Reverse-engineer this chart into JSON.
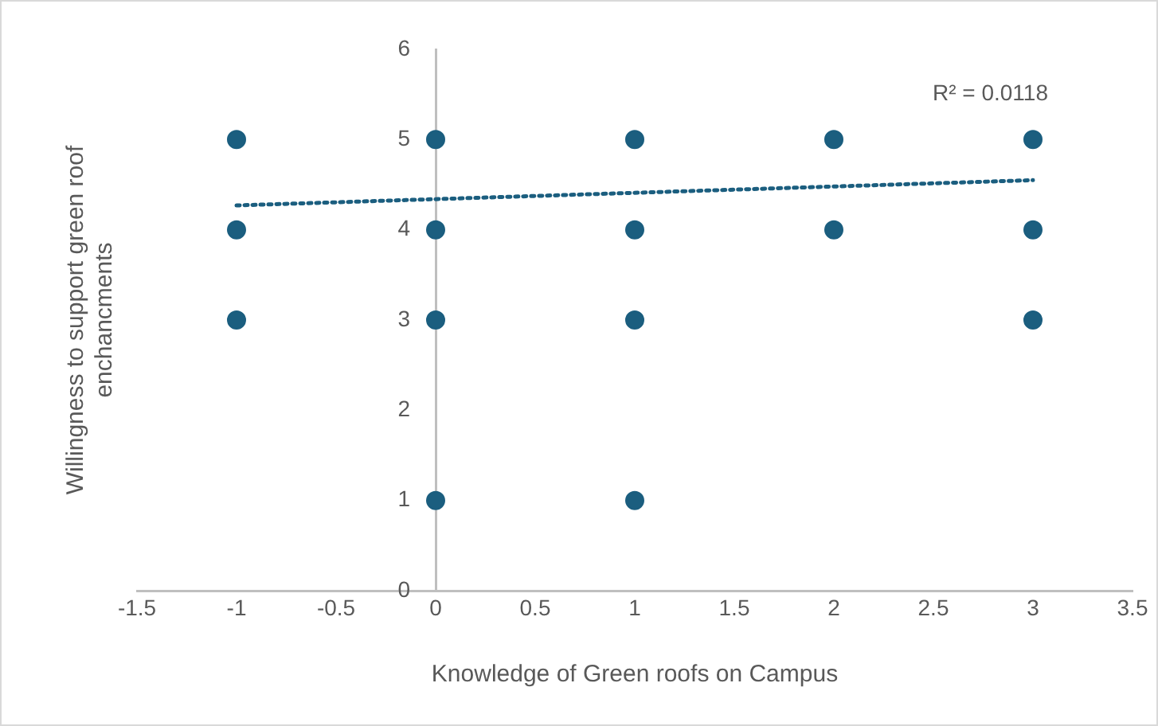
{
  "chart_data": {
    "type": "scatter",
    "xlabel": "Knowledge of Green roofs on Campus",
    "ylabel": "Willingness to support green roof enchancments",
    "series": [
      {
        "color": "#1b5e7f",
        "x": [
          -1,
          -1,
          -1,
          0,
          0,
          0,
          0,
          1,
          1,
          1,
          1,
          2,
          2,
          3,
          3,
          3
        ],
        "values": [
          5,
          4,
          3,
          5,
          4,
          3,
          1,
          5,
          4,
          3,
          1,
          5,
          4,
          5,
          4,
          3
        ],
        "marker": "circle"
      },
      {
        "type": "line",
        "color": "#1b5e7f",
        "x": [
          -1,
          3
        ],
        "values": [
          4.27,
          4.55
        ],
        "marker": "none",
        "line_style": "dotted"
      }
    ],
    "annotations": [
      "R² = 0.0118"
    ],
    "xlim": [
      -1.5,
      3.5
    ],
    "xticks": [
      -1.5,
      -1,
      -0.5,
      0,
      0.5,
      1,
      1.5,
      2,
      2.5,
      3,
      3.5
    ],
    "ylim": [
      0,
      6
    ],
    "yticks": [
      0,
      1,
      2,
      3,
      4,
      5,
      6
    ],
    "grid": false,
    "legend": false
  }
}
